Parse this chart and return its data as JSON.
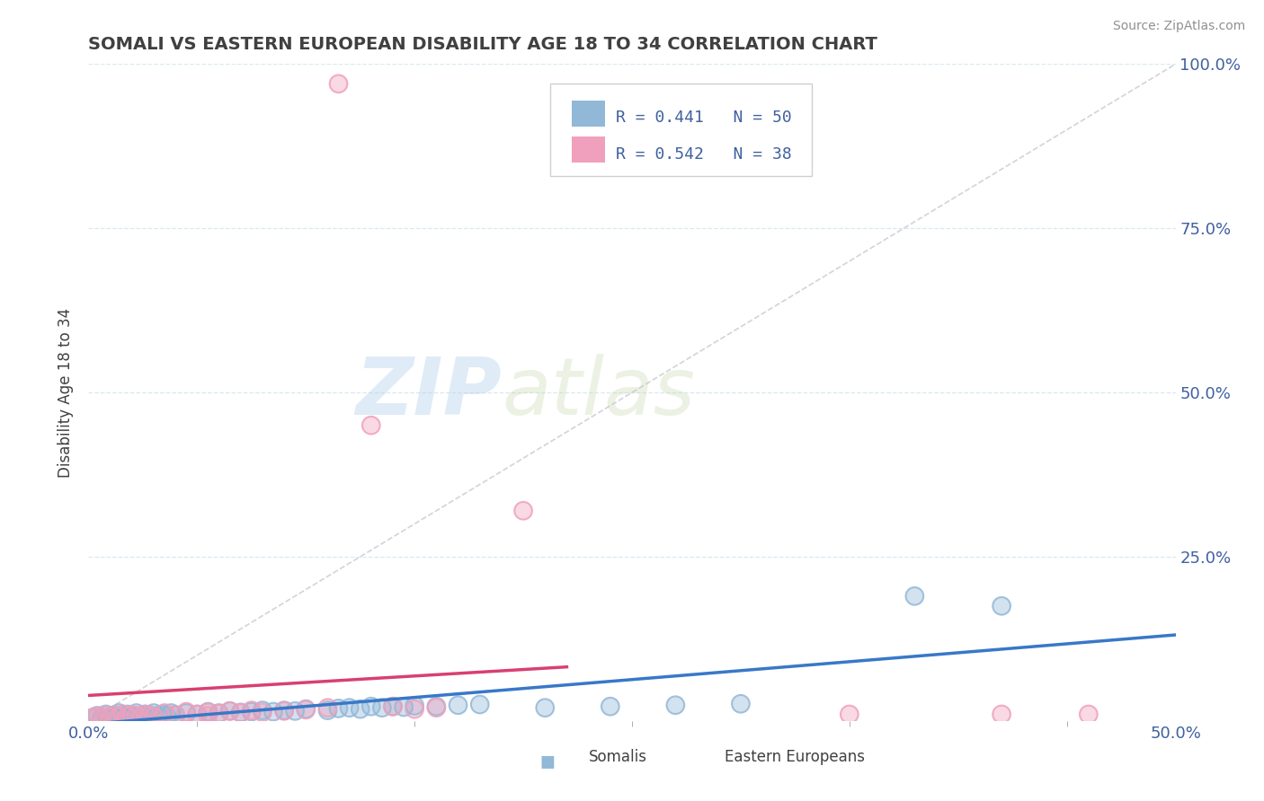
{
  "title": "SOMALI VS EASTERN EUROPEAN DISABILITY AGE 18 TO 34 CORRELATION CHART",
  "source": "Source: ZipAtlas.com",
  "ylabel": "Disability Age 18 to 34",
  "xlim": [
    0.0,
    0.5
  ],
  "ylim": [
    0.0,
    1.0
  ],
  "somali_R": 0.441,
  "somali_N": 50,
  "eastern_R": 0.542,
  "eastern_N": 38,
  "watermark_zip": "ZIP",
  "watermark_atlas": "atlas",
  "somali_color": "#92b8d8",
  "eastern_color": "#f0a0bc",
  "somali_line_color": "#3878c8",
  "eastern_line_color": "#d84070",
  "diag_color": "#c8c8d0",
  "grid_color": "#d8e8f0",
  "text_color": "#4060a0",
  "title_color": "#404040",
  "source_color": "#909090",
  "legend_text_color": "#4060a0",
  "somali_scatter": [
    [
      0.002,
      0.005
    ],
    [
      0.004,
      0.008
    ],
    [
      0.006,
      0.004
    ],
    [
      0.008,
      0.01
    ],
    [
      0.01,
      0.006
    ],
    [
      0.012,
      0.008
    ],
    [
      0.014,
      0.012
    ],
    [
      0.016,
      0.006
    ],
    [
      0.018,
      0.01
    ],
    [
      0.02,
      0.008
    ],
    [
      0.022,
      0.012
    ],
    [
      0.024,
      0.007
    ],
    [
      0.026,
      0.01
    ],
    [
      0.028,
      0.009
    ],
    [
      0.03,
      0.012
    ],
    [
      0.032,
      0.008
    ],
    [
      0.034,
      0.01
    ],
    [
      0.036,
      0.007
    ],
    [
      0.038,
      0.012
    ],
    [
      0.04,
      0.009
    ],
    [
      0.045,
      0.012
    ],
    [
      0.05,
      0.01
    ],
    [
      0.055,
      0.014
    ],
    [
      0.06,
      0.012
    ],
    [
      0.065,
      0.015
    ],
    [
      0.07,
      0.013
    ],
    [
      0.075,
      0.014
    ],
    [
      0.08,
      0.016
    ],
    [
      0.085,
      0.014
    ],
    [
      0.09,
      0.016
    ],
    [
      0.095,
      0.015
    ],
    [
      0.1,
      0.018
    ],
    [
      0.11,
      0.016
    ],
    [
      0.115,
      0.019
    ],
    [
      0.12,
      0.02
    ],
    [
      0.125,
      0.018
    ],
    [
      0.13,
      0.022
    ],
    [
      0.135,
      0.02
    ],
    [
      0.14,
      0.022
    ],
    [
      0.145,
      0.021
    ],
    [
      0.15,
      0.023
    ],
    [
      0.16,
      0.022
    ],
    [
      0.17,
      0.024
    ],
    [
      0.18,
      0.025
    ],
    [
      0.38,
      0.19
    ],
    [
      0.42,
      0.175
    ],
    [
      0.21,
      0.02
    ],
    [
      0.24,
      0.022
    ],
    [
      0.27,
      0.024
    ],
    [
      0.3,
      0.026
    ]
  ],
  "eastern_scatter": [
    [
      0.002,
      0.005
    ],
    [
      0.004,
      0.007
    ],
    [
      0.006,
      0.004
    ],
    [
      0.008,
      0.008
    ],
    [
      0.01,
      0.005
    ],
    [
      0.012,
      0.009
    ],
    [
      0.014,
      0.006
    ],
    [
      0.016,
      0.01
    ],
    [
      0.018,
      0.007
    ],
    [
      0.02,
      0.009
    ],
    [
      0.022,
      0.008
    ],
    [
      0.024,
      0.006
    ],
    [
      0.026,
      0.01
    ],
    [
      0.028,
      0.008
    ],
    [
      0.03,
      0.006
    ],
    [
      0.035,
      0.012
    ],
    [
      0.04,
      0.009
    ],
    [
      0.045,
      0.014
    ],
    [
      0.05,
      0.01
    ],
    [
      0.055,
      0.013
    ],
    [
      0.06,
      0.011
    ],
    [
      0.065,
      0.015
    ],
    [
      0.07,
      0.012
    ],
    [
      0.075,
      0.016
    ],
    [
      0.08,
      0.013
    ],
    [
      0.09,
      0.015
    ],
    [
      0.1,
      0.017
    ],
    [
      0.11,
      0.02
    ],
    [
      0.115,
      0.97
    ],
    [
      0.13,
      0.45
    ],
    [
      0.2,
      0.32
    ],
    [
      0.055,
      0.008
    ],
    [
      0.14,
      0.022
    ],
    [
      0.15,
      0.018
    ],
    [
      0.16,
      0.02
    ],
    [
      0.35,
      0.01
    ],
    [
      0.42,
      0.01
    ],
    [
      0.46,
      0.01
    ]
  ],
  "eastern_trend_xrange": [
    0.0,
    0.22
  ],
  "somali_trend_xrange": [
    0.0,
    0.5
  ]
}
